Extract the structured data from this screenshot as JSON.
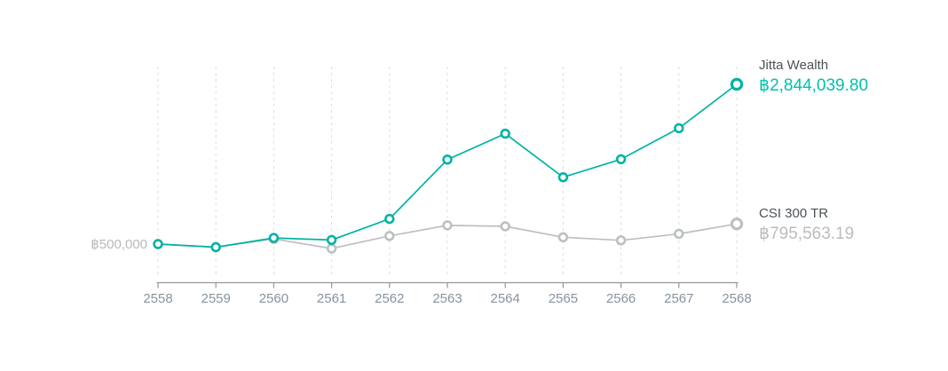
{
  "chart_data": {
    "type": "line",
    "title": "",
    "xlabel": "",
    "ylabel": "",
    "categories": [
      "2558",
      "2559",
      "2560",
      "2561",
      "2562",
      "2563",
      "2564",
      "2565",
      "2566",
      "2567",
      "2568"
    ],
    "series": [
      {
        "name": "Jitta Wealth",
        "display_value": "฿2,844,039.80",
        "color": "#00b3a4",
        "value_color": "#00c2ae",
        "values": [
          500000,
          455000,
          590000,
          560000,
          870000,
          1740000,
          2120000,
          1480000,
          1745000,
          2200000,
          2844039.8
        ]
      },
      {
        "name": "CSI 300 TR",
        "display_value": "฿795,563.19",
        "color": "#bcc0c2",
        "value_color": "#b9bdc0",
        "values": [
          500000,
          455000,
          575000,
          435000,
          620000,
          775000,
          760000,
          600000,
          555000,
          650000,
          795563.19
        ]
      }
    ],
    "baseline_label": "฿500,000",
    "baseline_value": 500000,
    "ylim": [
      0,
      3000000
    ],
    "grid": "vertical-dashed",
    "legend_position": "right-of-line-end"
  }
}
